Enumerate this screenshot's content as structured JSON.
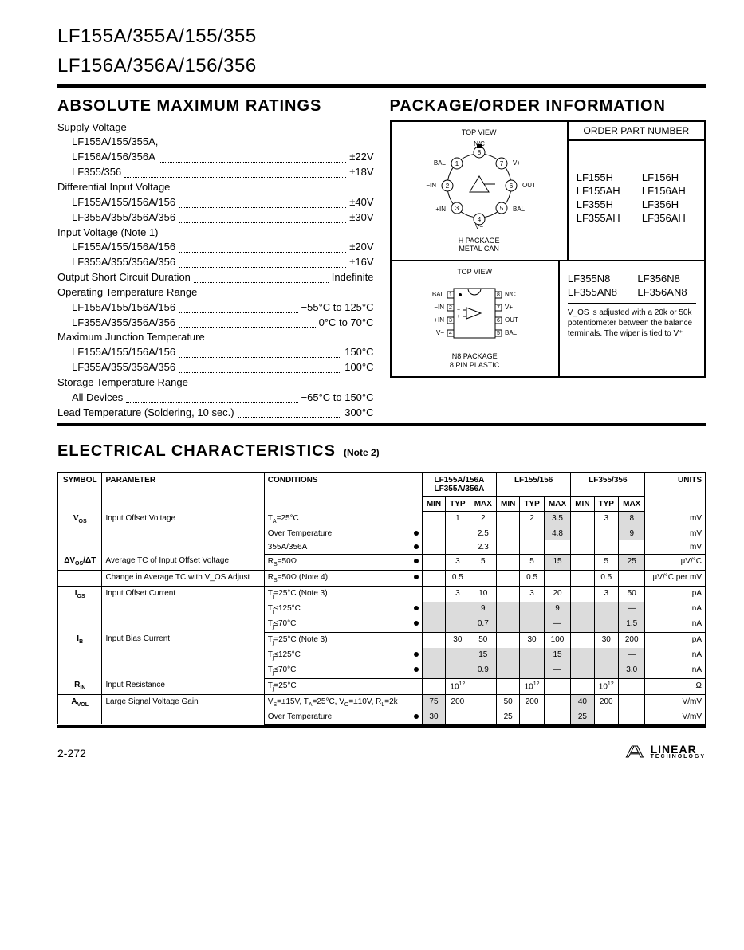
{
  "header": {
    "line1": "LF155A/355A/155/355",
    "line2": "LF156A/356A/156/356"
  },
  "sections": {
    "abs_max": "ABSOLUTE MAXIMUM RATINGS",
    "pkg": "PACKAGE/ORDER INFORMATION",
    "elec": "ELECTRICAL CHARACTERISTICS",
    "elec_note": "(Note 2)"
  },
  "ratings": [
    {
      "head": "Supply Voltage",
      "rows": [
        {
          "label": "LF155A/155/355A,",
          "val": ""
        },
        {
          "label": "LF156A/156/356A",
          "val": "±22V"
        },
        {
          "label": "LF355/356",
          "val": "±18V"
        }
      ]
    },
    {
      "head": "Differential Input Voltage",
      "rows": [
        {
          "label": "LF155A/155/156A/156",
          "val": "±40V"
        },
        {
          "label": "LF355A/355/356A/356",
          "val": "±30V"
        }
      ]
    },
    {
      "head": "Input Voltage (Note 1)",
      "rows": [
        {
          "label": "LF155A/155/156A/156",
          "val": "±20V"
        },
        {
          "label": "LF355A/355/356A/356",
          "val": "±16V"
        }
      ]
    },
    {
      "head": "Output Short Circuit Duration",
      "val": "Indefinite",
      "rows": []
    },
    {
      "head": "Operating Temperature Range",
      "rows": [
        {
          "label": "LF155A/155/156A/156",
          "val": "−55°C to 125°C"
        },
        {
          "label": "LF355A/355/356A/356",
          "val": "0°C to 70°C"
        }
      ]
    },
    {
      "head": "Maximum Junction Temperature",
      "rows": [
        {
          "label": "LF155A/155/156A/156",
          "val": "150°C"
        },
        {
          "label": "LF355A/355/356A/356",
          "val": "100°C"
        }
      ]
    },
    {
      "head": "Storage Temperature Range",
      "rows": [
        {
          "label": "All Devices",
          "val": "−65°C to 150°C"
        }
      ]
    },
    {
      "head": "Lead Temperature (Soldering, 10 sec.)",
      "val": "300°C",
      "rows": []
    }
  ],
  "package": {
    "order_header": "ORDER PART NUMBER",
    "top_view": "TOP VIEW",
    "h_package": "H PACKAGE",
    "metal_can": "METAL CAN",
    "n8_package": "N8 PACKAGE",
    "pin_plastic": "8 PIN PLASTIC",
    "can_pins": {
      "p1": "BAL",
      "p2": "−IN",
      "p3": "+IN",
      "p4": "V−",
      "p5": "BAL",
      "p6": "OUT",
      "p7": "V+",
      "p8": "N/C"
    },
    "dip_pins": {
      "p1": "BAL",
      "p2": "−IN",
      "p3": "+IN",
      "p4": "V−",
      "p5": "BAL",
      "p6": "OUT",
      "p7": "V+",
      "p8": "N/C"
    },
    "parts_h": [
      "LF155H",
      "LF156H",
      "LF155AH",
      "LF156AH",
      "LF355H",
      "LF356H",
      "LF355AH",
      "LF356AH"
    ],
    "parts_n8": [
      "LF355N8",
      "LF356N8",
      "LF355AN8",
      "LF356AN8"
    ],
    "note": "V_OS is adjusted with a 20k or 50k potentiometer between the balance terminals. The wiper is tied to V⁺"
  },
  "elec_table": {
    "col_groups": [
      "LF155A/156A\nLF355A/356A",
      "LF155/156",
      "LF355/356"
    ],
    "headers": {
      "symbol": "SYMBOL",
      "parameter": "PARAMETER",
      "conditions": "CONDITIONS",
      "min": "MIN",
      "typ": "TYP",
      "max": "MAX",
      "units": "UNITS"
    },
    "rows": [
      {
        "sym": "V_OS",
        "param": "Input Offset Voltage",
        "cond": [
          "T_A=25°C",
          "Over Temperature",
          "   355A/356A"
        ],
        "bul": [
          false,
          true,
          true
        ],
        "g1": [
          [
            "",
            "1",
            "2"
          ],
          [
            "",
            "",
            "2.5"
          ],
          [
            "",
            "",
            "2.3"
          ]
        ],
        "g2": [
          [
            "",
            "2",
            "3.5"
          ],
          [
            "",
            "",
            "4.8"
          ],
          [
            "",
            "",
            ""
          ]
        ],
        "g3": [
          [
            "",
            "3",
            "8"
          ],
          [
            "",
            "",
            "9"
          ],
          [
            "",
            "",
            ""
          ]
        ],
        "g2s": [
          [
            false,
            false,
            true
          ],
          [
            false,
            false,
            true
          ],
          [
            false,
            false,
            false
          ]
        ],
        "g3s": [
          [
            false,
            false,
            true
          ],
          [
            false,
            false,
            true
          ],
          [
            false,
            false,
            false
          ]
        ],
        "units": [
          "mV",
          "mV",
          "mV"
        ]
      },
      {
        "sym": "ΔV_OS/ΔT",
        "param": "Average TC of Input Offset Voltage",
        "cond": [
          "R_S=50Ω"
        ],
        "bul": [
          true
        ],
        "g1": [
          [
            "",
            "3",
            "5"
          ]
        ],
        "g2": [
          [
            "",
            "5",
            "15"
          ]
        ],
        "g3": [
          [
            "",
            "5",
            "25"
          ]
        ],
        "g2s": [
          [
            false,
            false,
            true
          ]
        ],
        "g3s": [
          [
            false,
            false,
            true
          ]
        ],
        "units": [
          "µV/°C"
        ]
      },
      {
        "sym": "",
        "param": "Change in Average TC with V_OS Adjust",
        "cond": [
          "R_S=50Ω (Note 4)"
        ],
        "bul": [
          true
        ],
        "g1": [
          [
            "",
            "0.5",
            ""
          ]
        ],
        "g2": [
          [
            "",
            "0.5",
            ""
          ]
        ],
        "g3": [
          [
            "",
            "0.5",
            ""
          ]
        ],
        "units": [
          "µV/°C per mV"
        ]
      },
      {
        "sym": "I_OS",
        "param": "Input Offset Current",
        "cond": [
          "T_j=25°C (Note 3)",
          "T_j≤125°C",
          "T_j≤70°C"
        ],
        "bul": [
          false,
          true,
          true
        ],
        "g1": [
          [
            "",
            "3",
            "10"
          ],
          [
            "",
            "",
            "9"
          ],
          [
            "",
            "",
            "0.7"
          ]
        ],
        "g2": [
          [
            "",
            "3",
            "20"
          ],
          [
            "",
            "",
            "9"
          ],
          [
            "",
            "",
            "—"
          ]
        ],
        "g3": [
          [
            "",
            "3",
            "50"
          ],
          [
            "",
            "",
            "—"
          ],
          [
            "",
            "",
            "1.5"
          ]
        ],
        "g1s": [
          [
            false,
            false,
            false
          ],
          [
            true,
            true,
            true
          ],
          [
            true,
            true,
            true
          ]
        ],
        "g2s": [
          [
            false,
            false,
            false
          ],
          [
            true,
            true,
            true
          ],
          [
            true,
            true,
            true
          ]
        ],
        "g3s": [
          [
            false,
            false,
            false
          ],
          [
            true,
            true,
            true
          ],
          [
            true,
            true,
            true
          ]
        ],
        "units": [
          "pA",
          "nA",
          "nA"
        ]
      },
      {
        "sym": "I_B",
        "param": "Input Bias Current",
        "cond": [
          "T_j=25°C (Note 3)",
          "T_j≤125°C",
          "T_j≤70°C"
        ],
        "bul": [
          false,
          true,
          true
        ],
        "g1": [
          [
            "",
            "30",
            "50"
          ],
          [
            "",
            "",
            "15"
          ],
          [
            "",
            "",
            "0.9"
          ]
        ],
        "g2": [
          [
            "",
            "30",
            "100"
          ],
          [
            "",
            "",
            "15"
          ],
          [
            "",
            "",
            "—"
          ]
        ],
        "g3": [
          [
            "",
            "30",
            "200"
          ],
          [
            "",
            "",
            "—"
          ],
          [
            "",
            "",
            "3.0"
          ]
        ],
        "g1s": [
          [
            false,
            false,
            false
          ],
          [
            true,
            true,
            true
          ],
          [
            true,
            true,
            true
          ]
        ],
        "g2s": [
          [
            false,
            false,
            false
          ],
          [
            true,
            true,
            true
          ],
          [
            true,
            true,
            true
          ]
        ],
        "g3s": [
          [
            false,
            false,
            false
          ],
          [
            true,
            true,
            true
          ],
          [
            true,
            true,
            true
          ]
        ],
        "units": [
          "pA",
          "nA",
          "nA"
        ]
      },
      {
        "sym": "R_IN",
        "param": "Input Resistance",
        "cond": [
          "T_j=25°C"
        ],
        "bul": [
          false
        ],
        "g1": [
          [
            "",
            "10¹²",
            ""
          ]
        ],
        "g2": [
          [
            "",
            "10¹²",
            ""
          ]
        ],
        "g3": [
          [
            "",
            "10¹²",
            ""
          ]
        ],
        "units": [
          "Ω"
        ]
      },
      {
        "sym": "A_VOL",
        "param": "Large Signal Voltage Gain",
        "cond": [
          "V_S=±15V, T_A=25°C, V_O=±10V, R_L=2k",
          "Over Temperature"
        ],
        "bul": [
          false,
          true
        ],
        "g1": [
          [
            "75",
            "200",
            ""
          ],
          [
            "30",
            "",
            ""
          ]
        ],
        "g2": [
          [
            "50",
            "200",
            ""
          ],
          [
            "25",
            "",
            ""
          ]
        ],
        "g3": [
          [
            "40",
            "200",
            ""
          ],
          [
            "25",
            "",
            ""
          ]
        ],
        "g1s": [
          [
            true,
            false,
            false
          ],
          [
            true,
            false,
            false
          ]
        ],
        "g3s": [
          [
            true,
            false,
            false
          ],
          [
            true,
            false,
            false
          ]
        ],
        "units": [
          "V/mV",
          "V/mV"
        ]
      }
    ]
  },
  "footer": {
    "page": "2-272",
    "brand": "LINEAR",
    "brand_sub": "TECHNOLOGY"
  }
}
